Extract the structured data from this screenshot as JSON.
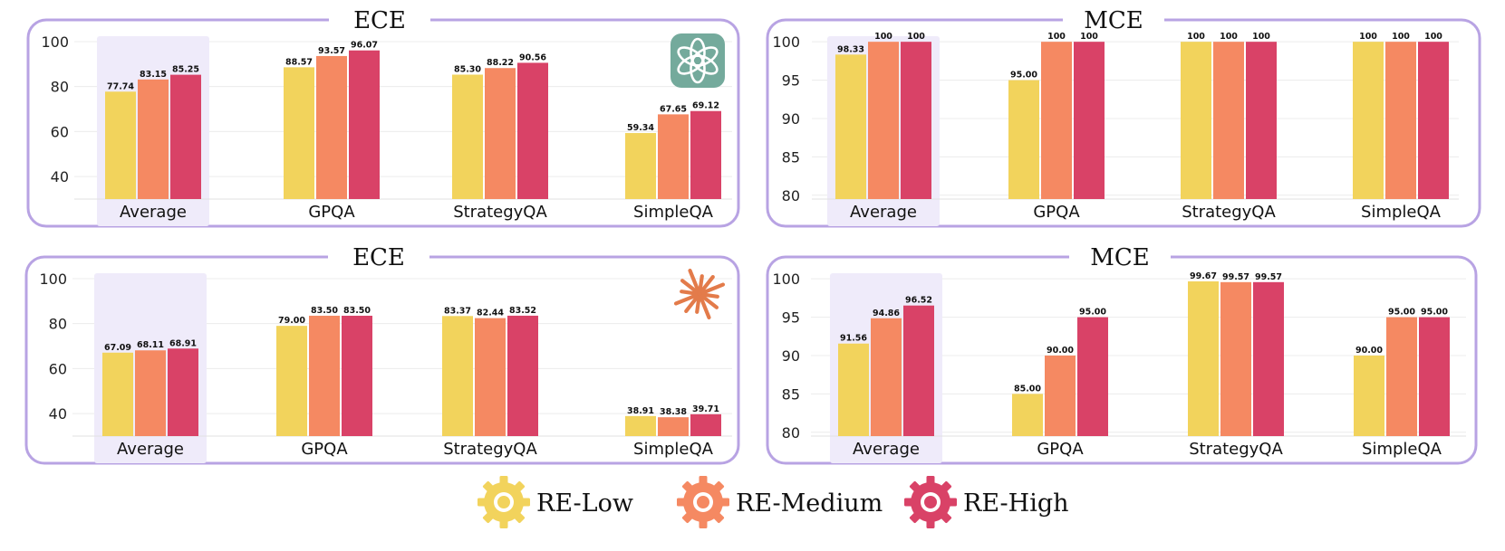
{
  "colors": {
    "re_low": "#F2D35C",
    "re_medium": "#F58962",
    "re_high": "#D94267",
    "frame": "#B8A3E3",
    "highlight": "#EFEBFA"
  },
  "legend": [
    {
      "label": "RE-Low",
      "color": "#F2D35C"
    },
    {
      "label": "RE-Medium",
      "color": "#F58962"
    },
    {
      "label": "RE-High",
      "color": "#D94267"
    }
  ],
  "chart_data": [
    {
      "id": "top-left",
      "type": "bar",
      "title": "ECE",
      "logo": "openai-logo",
      "categories": [
        "Average",
        "GPQA",
        "StrategyQA",
        "SimpleQA"
      ],
      "ylim": [
        30,
        104
      ],
      "yticks": [
        40,
        60,
        80,
        100
      ],
      "series": [
        {
          "name": "RE-Low",
          "values": [
            77.74,
            88.57,
            85.3,
            59.34
          ],
          "labels": [
            "77.74",
            "88.57",
            "85.30",
            "59.34"
          ]
        },
        {
          "name": "RE-Medium",
          "values": [
            83.15,
            93.57,
            88.22,
            67.65
          ],
          "labels": [
            "83.15",
            "93.57",
            "88.22",
            "67.65"
          ]
        },
        {
          "name": "RE-High",
          "values": [
            85.25,
            96.07,
            90.56,
            69.12
          ],
          "labels": [
            "85.25",
            "96.07",
            "90.56",
            "69.12"
          ]
        }
      ]
    },
    {
      "id": "top-right",
      "type": "bar",
      "title": "MCE",
      "logo": "",
      "categories": [
        "Average",
        "GPQA",
        "StrategyQA",
        "SimpleQA"
      ],
      "ylim": [
        79.5,
        101.2
      ],
      "yticks": [
        80,
        85,
        90,
        95,
        100
      ],
      "series": [
        {
          "name": "RE-Low",
          "values": [
            98.33,
            95.0,
            100,
            100
          ],
          "labels": [
            "98.33",
            "95.00",
            "100",
            "100"
          ]
        },
        {
          "name": "RE-Medium",
          "values": [
            100,
            100,
            100,
            100
          ],
          "labels": [
            "100",
            "100",
            "100",
            "100"
          ]
        },
        {
          "name": "RE-High",
          "values": [
            100,
            100,
            100,
            100
          ],
          "labels": [
            "100",
            "100",
            "100",
            "100"
          ]
        }
      ]
    },
    {
      "id": "bottom-left",
      "type": "bar",
      "title": "ECE",
      "logo": "anthropic-logo",
      "categories": [
        "Average",
        "GPQA",
        "StrategyQA",
        "SimpleQA"
      ],
      "ylim": [
        30,
        104
      ],
      "yticks": [
        40,
        60,
        80,
        100
      ],
      "series": [
        {
          "name": "RE-Low",
          "values": [
            67.09,
            79.0,
            83.37,
            38.91
          ],
          "labels": [
            "67.09",
            "79.00",
            "83.37",
            "38.91"
          ]
        },
        {
          "name": "RE-Medium",
          "values": [
            68.11,
            83.5,
            82.44,
            38.38
          ],
          "labels": [
            "68.11",
            "83.50",
            "82.44",
            "38.38"
          ]
        },
        {
          "name": "RE-High",
          "values": [
            68.91,
            83.5,
            83.52,
            39.71
          ],
          "labels": [
            "68.91",
            "83.50",
            "83.52",
            "39.71"
          ]
        }
      ]
    },
    {
      "id": "bottom-right",
      "type": "bar",
      "title": "MCE",
      "logo": "",
      "categories": [
        "Average",
        "GPQA",
        "StrategyQA",
        "SimpleQA"
      ],
      "ylim": [
        79.5,
        101.2
      ],
      "yticks": [
        80,
        85,
        90,
        95,
        100
      ],
      "series": [
        {
          "name": "RE-Low",
          "values": [
            91.56,
            85.0,
            99.67,
            90.0
          ],
          "labels": [
            "91.56",
            "85.00",
            "99.67",
            "90.00"
          ]
        },
        {
          "name": "RE-Medium",
          "values": [
            94.86,
            90.0,
            99.57,
            95.0
          ],
          "labels": [
            "94.86",
            "90.00",
            "99.57",
            "95.00"
          ]
        },
        {
          "name": "RE-High",
          "values": [
            96.52,
            95.0,
            99.57,
            95.0
          ],
          "labels": [
            "96.52",
            "95.00",
            "99.57",
            "95.00"
          ]
        }
      ]
    }
  ]
}
